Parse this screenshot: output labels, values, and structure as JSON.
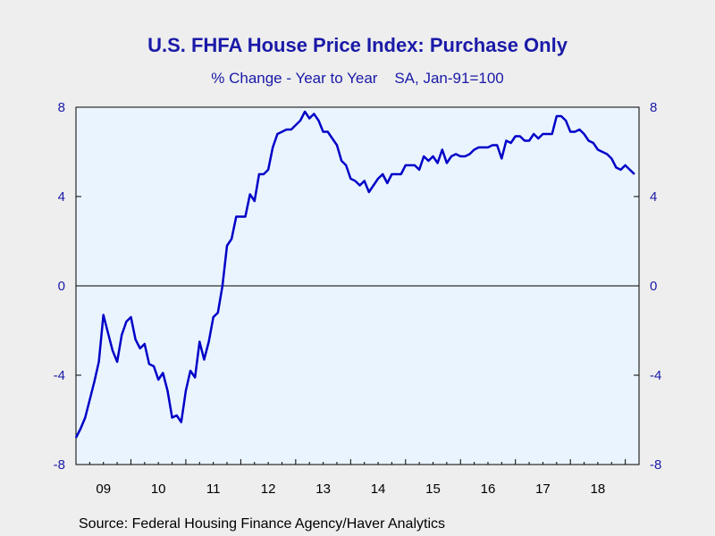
{
  "chart_data": {
    "type": "line",
    "title": "U.S. FHFA House Price Index: Purchase Only",
    "subtitle": "% Change - Year to Year    SA, Jan-91=100",
    "source": "Source:  Federal Housing Finance Agency/Haver Analytics",
    "ylim": [
      -8,
      8
    ],
    "yticks": [
      -8,
      -4,
      0,
      4,
      8
    ],
    "y_axis_right": true,
    "zero_line": true,
    "grid": false,
    "xlim": [
      2009.0,
      2019.25
    ],
    "xtick_labels": [
      "09",
      "10",
      "11",
      "12",
      "13",
      "14",
      "15",
      "16",
      "17",
      "18"
    ],
    "series": [
      {
        "color": "#0000c8",
        "x": [
          2009.0,
          2009.083,
          2009.167,
          2009.25,
          2009.333,
          2009.417,
          2009.5,
          2009.583,
          2009.667,
          2009.75,
          2009.833,
          2009.917,
          2010.0,
          2010.083,
          2010.167,
          2010.25,
          2010.333,
          2010.417,
          2010.5,
          2010.583,
          2010.667,
          2010.75,
          2010.833,
          2010.917,
          2011.0,
          2011.083,
          2011.167,
          2011.25,
          2011.333,
          2011.417,
          2011.5,
          2011.583,
          2011.667,
          2011.75,
          2011.833,
          2011.917,
          2012.0,
          2012.083,
          2012.167,
          2012.25,
          2012.333,
          2012.417,
          2012.5,
          2012.583,
          2012.667,
          2012.75,
          2012.833,
          2012.917,
          2013.0,
          2013.083,
          2013.167,
          2013.25,
          2013.333,
          2013.417,
          2013.5,
          2013.583,
          2013.667,
          2013.75,
          2013.833,
          2013.917,
          2014.0,
          2014.083,
          2014.167,
          2014.25,
          2014.333,
          2014.417,
          2014.5,
          2014.583,
          2014.667,
          2014.75,
          2014.833,
          2014.917,
          2015.0,
          2015.083,
          2015.167,
          2015.25,
          2015.333,
          2015.417,
          2015.5,
          2015.583,
          2015.667,
          2015.75,
          2015.833,
          2015.917,
          2016.0,
          2016.083,
          2016.167,
          2016.25,
          2016.333,
          2016.417,
          2016.5,
          2016.583,
          2016.667,
          2016.75,
          2016.833,
          2016.917,
          2017.0,
          2017.083,
          2017.167,
          2017.25,
          2017.333,
          2017.417,
          2017.5,
          2017.583,
          2017.667,
          2017.75,
          2017.833,
          2017.917,
          2018.0,
          2018.083,
          2018.167,
          2018.25,
          2018.333,
          2018.417,
          2018.5,
          2018.583,
          2018.667,
          2018.75,
          2018.833,
          2018.917,
          2019.0,
          2019.083,
          2019.167
        ],
        "y": [
          -6.8,
          -6.4,
          -5.9,
          -5.1,
          -4.3,
          -3.4,
          -1.3,
          -2.1,
          -2.9,
          -3.4,
          -2.2,
          -1.6,
          -1.4,
          -2.4,
          -2.8,
          -2.6,
          -3.5,
          -3.6,
          -4.2,
          -3.9,
          -4.7,
          -5.9,
          -5.8,
          -6.1,
          -4.7,
          -3.8,
          -4.1,
          -2.5,
          -3.3,
          -2.5,
          -1.4,
          -1.2,
          0.0,
          1.8,
          2.1,
          3.1,
          3.1,
          3.1,
          4.1,
          3.8,
          5.0,
          5.0,
          5.2,
          6.2,
          6.8,
          6.9,
          7.0,
          7.0,
          7.2,
          7.4,
          7.8,
          7.5,
          7.7,
          7.4,
          6.9,
          6.9,
          6.6,
          6.3,
          5.6,
          5.4,
          4.8,
          4.7,
          4.5,
          4.7,
          4.2,
          4.5,
          4.8,
          5.0,
          4.6,
          5.0,
          5.0,
          5.0,
          5.4,
          5.4,
          5.4,
          5.2,
          5.8,
          5.6,
          5.8,
          5.5,
          6.1,
          5.5,
          5.8,
          5.9,
          5.8,
          5.8,
          5.9,
          6.1,
          6.2,
          6.2,
          6.2,
          6.3,
          6.3,
          5.7,
          6.5,
          6.4,
          6.7,
          6.7,
          6.5,
          6.5,
          6.8,
          6.6,
          6.8,
          6.8,
          6.8,
          7.6,
          7.6,
          7.4,
          6.9,
          6.9,
          7.0,
          6.8,
          6.5,
          6.4,
          6.1,
          6.0,
          5.9,
          5.7,
          5.3,
          5.2,
          5.4,
          5.2,
          5.0
        ]
      }
    ]
  }
}
